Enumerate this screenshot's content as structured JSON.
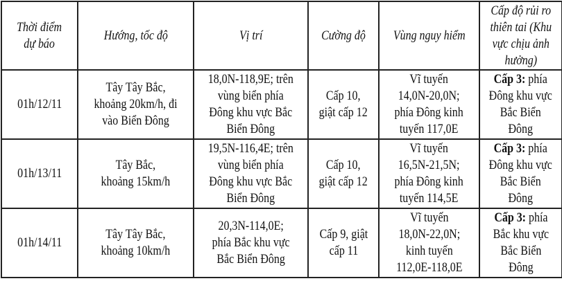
{
  "headers": [
    "Thời điểm\ndự báo",
    "Hướng, tốc độ",
    "Vị trí",
    "Cường độ",
    "Vùng nguy hiểm",
    "Cấp độ rủi ro\nthiên tai (Khu\nvực chịu ảnh\nhưởng)"
  ],
  "rows": [
    {
      "time": "01h/12/11",
      "direction": "Tây Tây Bắc,\nkhoảng 20km/h, đi\nvào Biển Đông",
      "position": "18,0N-118,9E; trên\nvùng biển phía\nĐông khu vực Bắc\nBiển Đông",
      "intensity": "Cấp 10,\ngiật cấp 12",
      "danger_zone": "Vĩ tuyến\n14,0N-20,0N;\nphía Đông kinh\ntuyến 117,0E",
      "risk_level": "Cấp 3:",
      "risk_area": " phía\nĐông khu vực\nBắc Biển\nĐông"
    },
    {
      "time": "01h/13/11",
      "direction": "Tây Bắc,\nkhoảng 15km/h",
      "position": "19,5N-116,4E; trên\nvùng biển phía\nĐông khu vực Bắc\nBiển Đông",
      "intensity": "Cấp 10,\ngiật cấp 12",
      "danger_zone": "Vĩ tuyến\n16,5N-21,5N;\nphía Đông kinh\ntuyến 114,5E",
      "risk_level": "Cấp 3:",
      "risk_area": " phía\nĐông khu vực\nBắc Biển\nĐông"
    },
    {
      "time": "01h/14/11",
      "direction": "Tây Tây Bắc,\nkhoảng 10km/h",
      "position": "20,3N-114,0E;\nphía Bắc khu vực\nBắc Biển Đông",
      "intensity": "Cấp 9, giật\ncấp 11",
      "danger_zone": "Vĩ tuyến\n18,0N-22,0N;\nkinh tuyến\n112,0E-118,0E",
      "risk_level": "Cấp 3:",
      "risk_area": " phía\nBắc khu vực\nBắc Biển\nĐông"
    }
  ]
}
